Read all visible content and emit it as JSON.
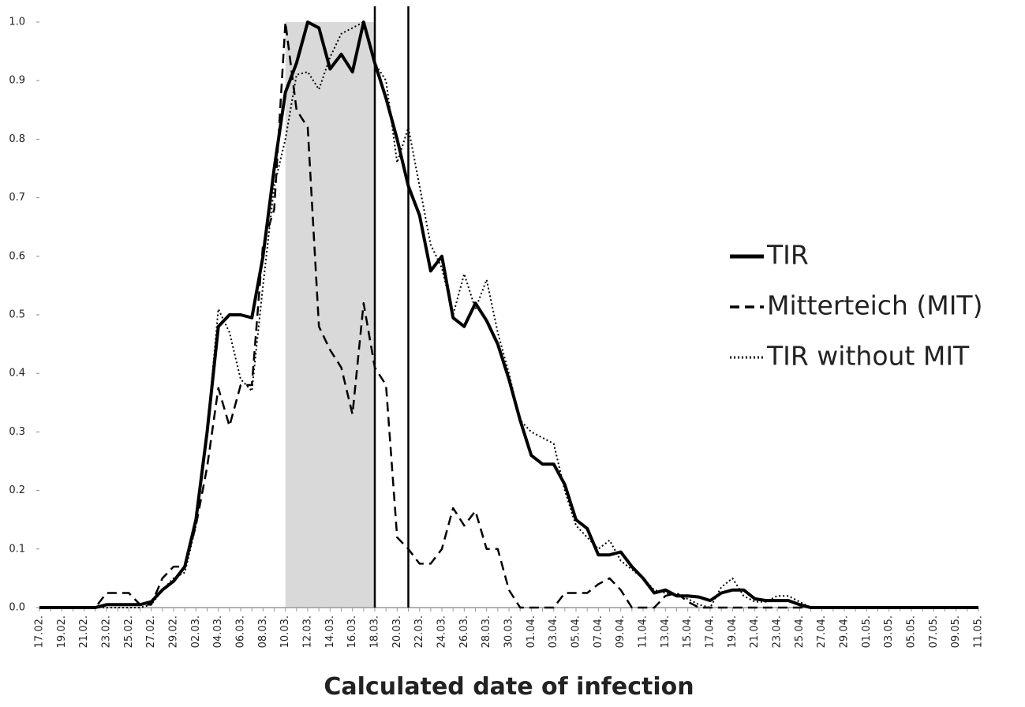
{
  "chart_data": {
    "type": "line",
    "xlabel": "Calculated date of infection",
    "categories": [
      "17.02.",
      null,
      "19.02.",
      null,
      "21.02.",
      null,
      "23.02.",
      null,
      "25.02.",
      null,
      "27.02.",
      null,
      "29.02.",
      null,
      "02.03.",
      null,
      "04.03.",
      null,
      "06.03.",
      null,
      "08.03.",
      null,
      "10.03.",
      null,
      "12.03.",
      null,
      "14.03.",
      null,
      "16.03.",
      null,
      "18.03.",
      null,
      "20.03.",
      null,
      "22.03.",
      null,
      "24.03.",
      null,
      "26.03.",
      null,
      "28.03.",
      null,
      "30.03.",
      null,
      "01.04.",
      null,
      "03.04.",
      null,
      "05.04.",
      null,
      "07.04.",
      null,
      "09.04.",
      null,
      "11.04.",
      null,
      "13.04.",
      null,
      "15.04.",
      null,
      "17.04.",
      null,
      "19.04.",
      null,
      "21.04.",
      null,
      "23.04.",
      null,
      "25.04.",
      null,
      "27.04.",
      null,
      "29.04.",
      null,
      "01.05.",
      null,
      "03.05.",
      null,
      "05.05.",
      null,
      "07.05.",
      null,
      "09.05.",
      null,
      "11.05."
    ],
    "series": [
      {
        "name": "TIR",
        "color": "#000000",
        "dash": "solid",
        "values": [
          0,
          0,
          0,
          0,
          0,
          0,
          0.005,
          0.005,
          0.005,
          0.005,
          0.01,
          0.03,
          0.045,
          0.07,
          0.15,
          0.3,
          0.48,
          0.5,
          0.5,
          0.495,
          0.6,
          0.75,
          0.88,
          0.93,
          1.0,
          0.99,
          0.92,
          0.945,
          0.915,
          1.0,
          0.93,
          0.87,
          0.8,
          0.72,
          0.67,
          0.575,
          0.6,
          0.495,
          0.48,
          0.52,
          0.49,
          0.45,
          0.39,
          0.32,
          0.26,
          0.245,
          0.245,
          0.21,
          0.15,
          0.135,
          0.09,
          0.09,
          0.095,
          0.07,
          0.05,
          0.025,
          0.03,
          0.02,
          0.02,
          0.018,
          0.012,
          0.025,
          0.03,
          0.03,
          0.015,
          0.012,
          0.012,
          0.012,
          0.005,
          0,
          0,
          0,
          0,
          0,
          0,
          0,
          0,
          0,
          0,
          0,
          0,
          0,
          0,
          0,
          0
        ]
      },
      {
        "name": "Mitterteich (MIT)",
        "color": "#000000",
        "dash": "dashed",
        "values": [
          0,
          0,
          0,
          0,
          0,
          0,
          0.025,
          0.025,
          0.025,
          0.005,
          0.005,
          0.05,
          0.07,
          0.07,
          0.14,
          0.24,
          0.375,
          0.31,
          0.38,
          0.38,
          0.62,
          0.68,
          1.0,
          0.85,
          0.82,
          0.48,
          0.44,
          0.41,
          0.33,
          0.52,
          0.41,
          0.38,
          0.12,
          0.1,
          0.075,
          0.075,
          0.1,
          0.17,
          0.14,
          0.165,
          0.1,
          0.1,
          0.03,
          0,
          0,
          0,
          0,
          0.025,
          0.025,
          0.025,
          0.04,
          0.05,
          0.03,
          0,
          0,
          0,
          0.02,
          0.025,
          0.01,
          0,
          0,
          0,
          0,
          0,
          0,
          0,
          0,
          0,
          0,
          0,
          0,
          0,
          0,
          0,
          0,
          0,
          0,
          0,
          0,
          0,
          0,
          0,
          0,
          0,
          0
        ]
      },
      {
        "name": "TIR without MIT",
        "color": "#000000",
        "dash": "dotted",
        "values": [
          0,
          0,
          0,
          0,
          0,
          0,
          0,
          0,
          0,
          0,
          0.005,
          0.03,
          0.05,
          0.06,
          0.14,
          0.3,
          0.51,
          0.47,
          0.39,
          0.37,
          0.55,
          0.72,
          0.8,
          0.91,
          0.915,
          0.885,
          0.94,
          0.98,
          0.99,
          1.0,
          0.93,
          0.9,
          0.76,
          0.82,
          0.72,
          0.62,
          0.58,
          0.5,
          0.57,
          0.51,
          0.56,
          0.47,
          0.4,
          0.32,
          0.3,
          0.29,
          0.28,
          0.2,
          0.14,
          0.12,
          0.1,
          0.115,
          0.08,
          0.065,
          0.05,
          0.03,
          0.025,
          0.02,
          0.015,
          0.005,
          0,
          0.035,
          0.05,
          0.02,
          0.01,
          0.01,
          0.02,
          0.02,
          0.01,
          0,
          0,
          0,
          0,
          0,
          0,
          0,
          0,
          0,
          0,
          0,
          0,
          0,
          0,
          0,
          0
        ]
      }
    ],
    "highlight": [
      22,
      30
    ],
    "highlight_color": "#d9d9d9",
    "markers": [
      30,
      33
    ],
    "ylim": [
      0,
      1
    ],
    "yticks": [
      {
        "value": 0,
        "label": "0.0"
      },
      0.1,
      0.2,
      0.3,
      0.4,
      0.5,
      0.6,
      0.7,
      0.8,
      0.9,
      {
        "value": 1,
        "label": "1.0"
      }
    ],
    "grid": false,
    "legend": "right"
  }
}
